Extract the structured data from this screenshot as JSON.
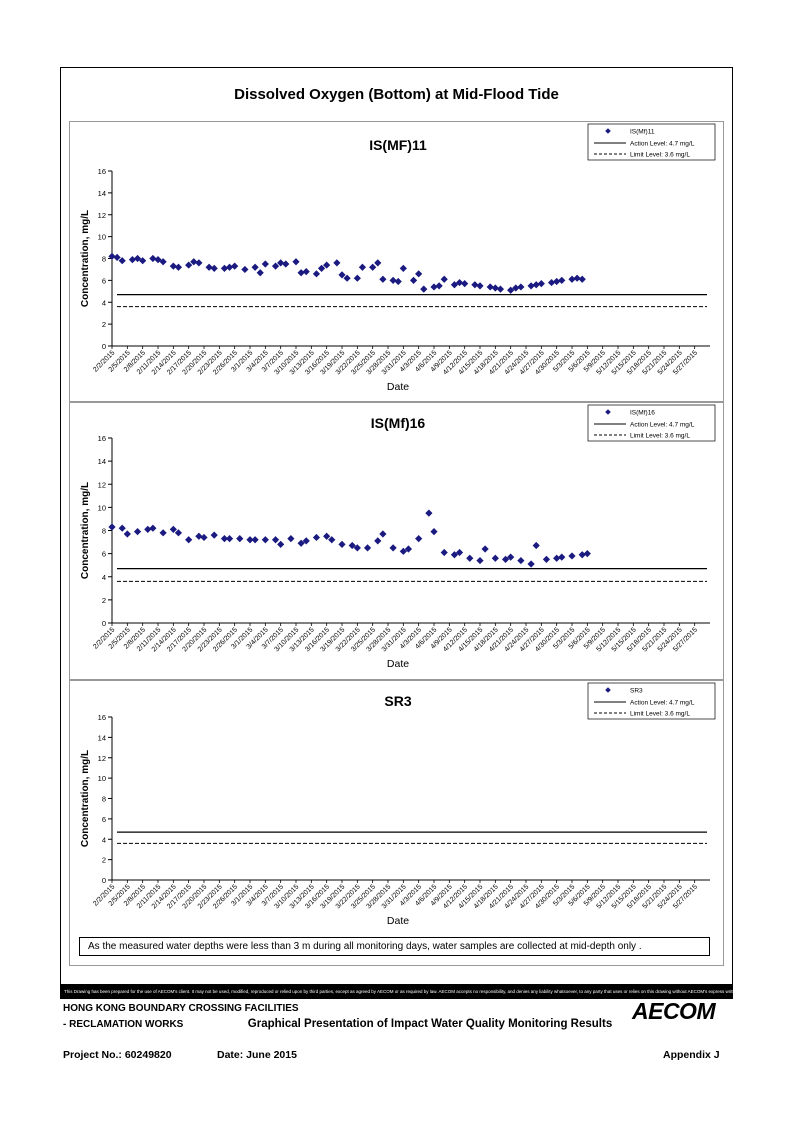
{
  "title": "Dissolved Oxygen (Bottom) at Mid-Flood Tide",
  "x_ticks": [
    "2/2/2015",
    "2/5/2015",
    "2/8/2015",
    "2/11/2015",
    "2/14/2015",
    "2/17/2015",
    "2/20/2015",
    "2/23/2015",
    "2/26/2015",
    "3/1/2015",
    "3/4/2015",
    "3/7/2015",
    "3/10/2015",
    "3/13/2015",
    "3/16/2015",
    "3/19/2015",
    "3/22/2015",
    "3/25/2015",
    "3/28/2015",
    "3/31/2015",
    "4/3/2015",
    "4/6/2015",
    "4/9/2015",
    "4/12/2015",
    "4/15/2015",
    "4/18/2015",
    "4/21/2015",
    "4/24/2015",
    "4/27/2015",
    "4/30/2015",
    "5/3/2015",
    "5/6/2015",
    "5/9/2015",
    "5/12/2015",
    "5/15/2015",
    "5/18/2015",
    "5/21/2015",
    "5/24/2015",
    "5/27/2015"
  ],
  "y_ticks": [
    "0",
    "2",
    "4",
    "6",
    "8",
    "10",
    "12",
    "14",
    "16"
  ],
  "colors": {
    "marker": "#1a1a80",
    "line": "#000000"
  },
  "chart_data": [
    {
      "type": "scatter",
      "title": "IS(MF)11",
      "xlabel": "Date",
      "ylabel": "Concentration, mg/L",
      "ylim": [
        0,
        16
      ],
      "legend_position": "top-right",
      "grid": false,
      "series": [
        {
          "name": "IS(Mf)11",
          "x": [
            "2/2/2015",
            "2/3/2015",
            "2/4/2015",
            "2/6/2015",
            "2/7/2015",
            "2/8/2015",
            "2/10/2015",
            "2/11/2015",
            "2/12/2015",
            "2/14/2015",
            "2/15/2015",
            "2/17/2015",
            "2/18/2015",
            "2/19/2015",
            "2/21/2015",
            "2/22/2015",
            "2/24/2015",
            "2/25/2015",
            "2/26/2015",
            "2/28/2015",
            "3/2/2015",
            "3/3/2015",
            "3/4/2015",
            "3/6/2015",
            "3/7/2015",
            "3/8/2015",
            "3/10/2015",
            "3/11/2015",
            "3/12/2015",
            "3/14/2015",
            "3/15/2015",
            "3/16/2015",
            "3/18/2015",
            "3/19/2015",
            "3/20/2015",
            "3/22/2015",
            "3/23/2015",
            "3/25/2015",
            "3/26/2015",
            "3/27/2015",
            "3/29/2015",
            "3/30/2015",
            "3/31/2015",
            "4/2/2015",
            "4/3/2015",
            "4/4/2015",
            "4/6/2015",
            "4/7/2015",
            "4/8/2015",
            "4/10/2015",
            "4/11/2015",
            "4/12/2015",
            "4/14/2015",
            "4/15/2015",
            "4/17/2015",
            "4/18/2015",
            "4/19/2015",
            "4/21/2015",
            "4/22/2015",
            "4/23/2015",
            "4/25/2015",
            "4/26/2015",
            "4/27/2015",
            "4/29/2015",
            "4/30/2015",
            "5/1/2015",
            "5/3/2015",
            "5/4/2015",
            "5/5/2015"
          ],
          "values": [
            8.2,
            8.1,
            7.8,
            7.9,
            8.0,
            7.8,
            8.0,
            7.9,
            7.7,
            7.3,
            7.2,
            7.4,
            7.7,
            7.6,
            7.2,
            7.1,
            7.1,
            7.2,
            7.3,
            7.0,
            7.2,
            6.7,
            7.5,
            7.3,
            7.6,
            7.5,
            7.7,
            6.7,
            6.8,
            6.6,
            7.1,
            7.4,
            7.6,
            6.5,
            6.2,
            6.2,
            7.2,
            7.2,
            7.6,
            6.1,
            6.0,
            5.9,
            7.1,
            6.0,
            6.6,
            5.2,
            5.4,
            5.5,
            6.1,
            5.6,
            5.8,
            5.7,
            5.6,
            5.5,
            5.4,
            5.3,
            5.2,
            5.1,
            5.3,
            5.4,
            5.5,
            5.6,
            5.7,
            5.8,
            5.9,
            6.0,
            6.1,
            6.2,
            6.1
          ]
        },
        {
          "name": "Action Level: 4.7 mg/L",
          "value": 4.7
        },
        {
          "name": "Limit Level: 3.6 mg/L",
          "value": 3.6
        }
      ]
    },
    {
      "type": "scatter",
      "title": "IS(Mf)16",
      "xlabel": "Date",
      "ylabel": "Concentration, mg/L",
      "ylim": [
        0,
        16
      ],
      "legend_position": "top-right",
      "grid": false,
      "series": [
        {
          "name": "IS(Mf)16",
          "x": [
            "2/2/2015",
            "2/4/2015",
            "2/5/2015",
            "2/7/2015",
            "2/9/2015",
            "2/10/2015",
            "2/12/2015",
            "2/14/2015",
            "2/15/2015",
            "2/17/2015",
            "2/19/2015",
            "2/20/2015",
            "2/22/2015",
            "2/24/2015",
            "2/25/2015",
            "2/27/2015",
            "3/1/2015",
            "3/2/2015",
            "3/4/2015",
            "3/6/2015",
            "3/7/2015",
            "3/9/2015",
            "3/11/2015",
            "3/12/2015",
            "3/14/2015",
            "3/16/2015",
            "3/17/2015",
            "3/19/2015",
            "3/21/2015",
            "3/22/2015",
            "3/24/2015",
            "3/26/2015",
            "3/27/2015",
            "3/29/2015",
            "3/31/2015",
            "4/1/2015",
            "4/3/2015",
            "4/5/2015",
            "4/6/2015",
            "4/8/2015",
            "4/10/2015",
            "4/11/2015",
            "4/13/2015",
            "4/15/2015",
            "4/16/2015",
            "4/18/2015",
            "4/20/2015",
            "4/21/2015",
            "4/23/2015",
            "4/25/2015",
            "4/26/2015",
            "4/28/2015",
            "4/30/2015",
            "5/1/2015",
            "5/3/2015",
            "5/5/2015",
            "5/6/2015"
          ],
          "values": [
            8.3,
            8.2,
            7.7,
            7.9,
            8.1,
            8.2,
            7.8,
            8.1,
            7.8,
            7.2,
            7.5,
            7.4,
            7.6,
            7.3,
            7.3,
            7.3,
            7.2,
            7.2,
            7.2,
            7.2,
            6.8,
            7.3,
            6.9,
            7.1,
            7.4,
            7.5,
            7.2,
            6.8,
            6.7,
            6.5,
            6.5,
            7.1,
            7.7,
            6.5,
            6.2,
            6.4,
            7.3,
            9.5,
            7.9,
            6.1,
            5.9,
            6.1,
            5.6,
            5.4,
            6.4,
            5.6,
            5.5,
            5.7,
            5.4,
            5.1,
            6.7,
            5.5,
            5.6,
            5.7,
            5.8,
            5.9,
            6.0
          ]
        },
        {
          "name": "Action Level: 4.7 mg/L",
          "value": 4.7
        },
        {
          "name": "Limit Level: 3.6 mg/L",
          "value": 3.6
        }
      ]
    },
    {
      "type": "scatter",
      "title": "SR3",
      "xlabel": "Date",
      "ylabel": "Concentration, mg/L",
      "ylim": [
        0,
        16
      ],
      "legend_position": "top-right",
      "grid": false,
      "series": [
        {
          "name": "SR3",
          "x": [],
          "values": []
        },
        {
          "name": "Action Level: 4.7 mg/L",
          "value": 4.7
        },
        {
          "name": "Limit Level: 3.6 mg/L",
          "value": 3.6
        }
      ]
    }
  ],
  "note": "As the measured water depths were less than 3 m during all monitoring days, water samples are collected  at  mid-depth only .",
  "disclaimer": "This Drawing has been prepared for the use of AECOM's client. It may not be used, modified, reproduced or relied upon by third parties, except as agreed by AECOM or as required by law. AECOM accepts no responsibility, and denies any liability whatsoever, to any party that uses or relies on this drawing without AECOM's express written consent.",
  "footer": {
    "project_line1": "HONG KONG BOUNDARY CROSSING FACILITIES",
    "project_line2": "- RECLAMATION WORKS",
    "title": "Graphical Presentation of Impact Water Quality Monitoring Results",
    "project_no": "Project No.: 60249820",
    "date": "Date: June 2015",
    "appendix": "Appendix J",
    "logo": "AECOM"
  }
}
